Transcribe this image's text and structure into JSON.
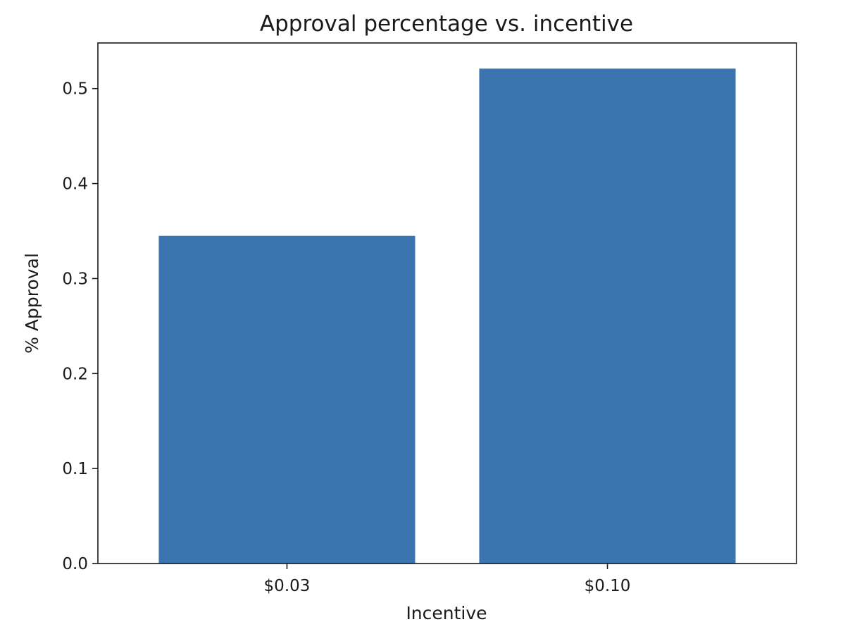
{
  "chart_data": {
    "type": "bar",
    "title": "Approval percentage vs. incentive",
    "xlabel": "Incentive",
    "ylabel": "% Approval",
    "categories": [
      "$0.03",
      "$0.10"
    ],
    "values": [
      0.345,
      0.521
    ],
    "ylim": [
      0,
      0.548
    ],
    "yticks": [
      0.0,
      0.1,
      0.2,
      0.3,
      0.4,
      0.5
    ],
    "ytick_labels": [
      "0.0",
      "0.1",
      "0.2",
      "0.3",
      "0.4",
      "0.5"
    ],
    "bar_color": "#3a75af",
    "grid": false,
    "legend": "none"
  }
}
